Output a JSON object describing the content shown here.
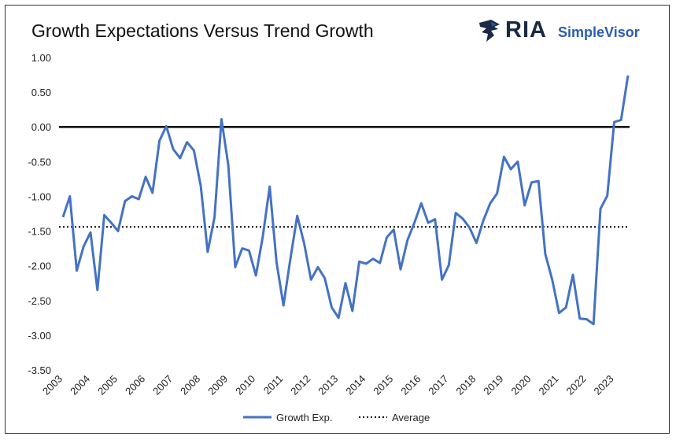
{
  "chart_data": {
    "type": "line",
    "title": "Growth Expectations Versus Trend Growth",
    "brand": {
      "ria": "RIA",
      "simplevisor": "SimpleVisor",
      "color_dark": "#1a2a44",
      "color_accent": "#2a5db0"
    },
    "xlabel": "",
    "ylabel": "",
    "ylim": [
      -3.5,
      1.0
    ],
    "yticks": [
      "1.00",
      "0.50",
      "0.00",
      "-0.50",
      "-1.00",
      "-1.50",
      "-2.00",
      "-2.50",
      "-3.00",
      "-3.50"
    ],
    "xticks": [
      "2003",
      "2004",
      "2005",
      "2006",
      "2007",
      "2008",
      "2009",
      "2010",
      "2011",
      "2012",
      "2013",
      "2014",
      "2015",
      "2016",
      "2017",
      "2018",
      "2019",
      "2020",
      "2021",
      "2022",
      "2023"
    ],
    "x_start": 2003,
    "points_per_year": 4,
    "zero_line": 0.0,
    "legend_position": "bottom",
    "series": [
      {
        "name": "Growth Exp.",
        "color": "#4472c4",
        "values": [
          -1.3,
          -1.0,
          -2.07,
          -1.72,
          -1.52,
          -2.35,
          -1.27,
          -1.38,
          -1.5,
          -1.07,
          -1.0,
          -1.04,
          -0.72,
          -0.95,
          -0.2,
          0.01,
          -0.32,
          -0.45,
          -0.22,
          -0.34,
          -0.85,
          -1.8,
          -1.3,
          0.11,
          -0.55,
          -2.02,
          -1.75,
          -1.78,
          -2.14,
          -1.58,
          -0.86,
          -1.95,
          -2.57,
          -1.9,
          -1.28,
          -1.68,
          -2.2,
          -2.02,
          -2.18,
          -2.6,
          -2.75,
          -2.25,
          -2.65,
          -1.94,
          -1.97,
          -1.9,
          -1.96,
          -1.59,
          -1.48,
          -2.05,
          -1.63,
          -1.38,
          -1.1,
          -1.38,
          -1.33,
          -2.2,
          -1.99,
          -1.24,
          -1.32,
          -1.45,
          -1.67,
          -1.35,
          -1.1,
          -0.96,
          -0.43,
          -0.61,
          -0.5,
          -1.13,
          -0.8,
          -0.78,
          -1.83,
          -2.2,
          -2.68,
          -2.6,
          -2.13,
          -2.76,
          -2.77,
          -2.84,
          -1.18,
          -0.99,
          0.07,
          0.1,
          0.74
        ]
      },
      {
        "name": "Average",
        "color": "#000000",
        "value": -1.44,
        "style": "dotted"
      }
    ]
  }
}
